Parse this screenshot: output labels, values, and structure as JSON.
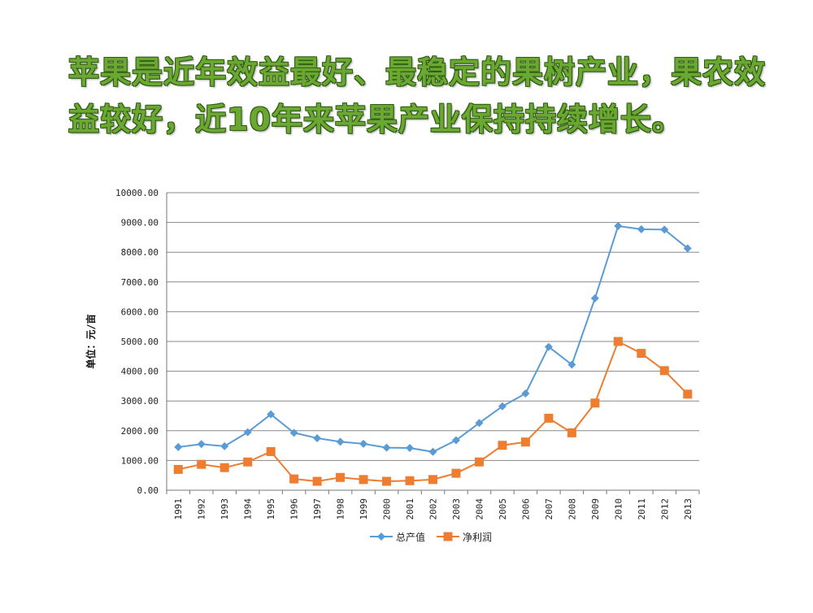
{
  "slide": {
    "title": "苹果是近年效益最好、最稳定的果树产业，果农效益较好，近10年来苹果产业保持持续增长。"
  },
  "colors": {
    "title_green": "#6aa832",
    "series_blue": "#5b9bd5",
    "series_orange": "#ed7d31",
    "grid": "#888888"
  },
  "chart_data": {
    "type": "line",
    "title": "",
    "ylabel": "单位：元/亩",
    "xlabel": "",
    "ylim": [
      0,
      10000
    ],
    "yticks": [
      "0.00",
      "1000.00",
      "2000.00",
      "3000.00",
      "4000.00",
      "5000.00",
      "6000.00",
      "7000.00",
      "8000.00",
      "9000.00",
      "10000.00"
    ],
    "grid": true,
    "legend_position": "bottom",
    "categories": [
      "1991",
      "1992",
      "1993",
      "1994",
      "1995",
      "1996",
      "1997",
      "1998",
      "1999",
      "2000",
      "2001",
      "2002",
      "2003",
      "2004",
      "2005",
      "2006",
      "2007",
      "2008",
      "2009",
      "2010",
      "2011",
      "2012",
      "2013"
    ],
    "series": [
      {
        "name": "总产值",
        "marker": "diamond",
        "color": "#5b9bd5",
        "values": [
          1450,
          1550,
          1480,
          1950,
          2550,
          1930,
          1750,
          1630,
          1560,
          1430,
          1420,
          1290,
          1680,
          2260,
          2820,
          3250,
          4820,
          4220,
          6450,
          8880,
          8770,
          8760,
          8130
        ]
      },
      {
        "name": "净利润",
        "marker": "square",
        "color": "#ed7d31",
        "values": [
          700,
          870,
          760,
          950,
          1300,
          380,
          300,
          430,
          360,
          300,
          320,
          360,
          570,
          950,
          1510,
          1620,
          2420,
          1930,
          2930,
          5000,
          4600,
          4020,
          3230
        ]
      }
    ]
  }
}
